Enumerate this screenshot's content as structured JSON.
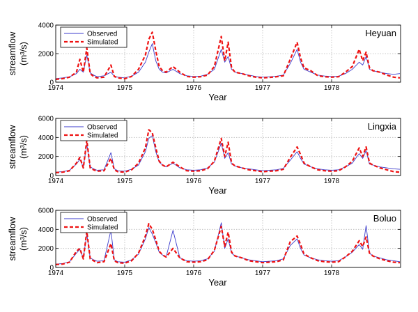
{
  "chart_data": [
    {
      "type": "line",
      "station": "Heyuan",
      "xlabel": "Year",
      "ylabel": "streamflow",
      "ylabel_unit": "(m³/s)",
      "xlim": [
        1974,
        1979
      ],
      "ylim": [
        0,
        4000
      ],
      "xticks": [
        "1974",
        "1975",
        "1976",
        "1977",
        "1978"
      ],
      "yticks": [
        "0",
        "2000",
        "4000"
      ],
      "grid": true,
      "legend": "top-left",
      "series": [
        {
          "name": "Observed",
          "color": "#3b3bcc",
          "style": "solid",
          "x": [
            1974.0,
            1974.1,
            1974.2,
            1974.3,
            1974.35,
            1974.4,
            1974.45,
            1974.5,
            1974.55,
            1974.6,
            1974.7,
            1974.8,
            1974.85,
            1974.9,
            1975.0,
            1975.1,
            1975.2,
            1975.3,
            1975.35,
            1975.4,
            1975.45,
            1975.5,
            1975.55,
            1975.6,
            1975.7,
            1975.8,
            1975.9,
            1976.0,
            1976.1,
            1976.2,
            1976.3,
            1976.4,
            1976.45,
            1976.5,
            1976.55,
            1976.6,
            1976.7,
            1976.8,
            1976.9,
            1977.0,
            1977.1,
            1977.2,
            1977.3,
            1977.4,
            1977.5,
            1977.55,
            1977.6,
            1977.7,
            1977.8,
            1977.9,
            1978.0,
            1978.1,
            1978.2,
            1978.3,
            1978.4,
            1978.45,
            1978.5,
            1978.55,
            1978.6,
            1978.7,
            1978.8,
            1978.9,
            1978.99
          ],
          "y": [
            250,
            300,
            380,
            600,
            900,
            700,
            1900,
            650,
            500,
            380,
            450,
            700,
            420,
            350,
            300,
            420,
            700,
            1400,
            2100,
            2700,
            1500,
            900,
            700,
            650,
            900,
            600,
            450,
            400,
            420,
            550,
            900,
            2300,
            1400,
            1800,
            900,
            700,
            600,
            500,
            400,
            350,
            380,
            420,
            500,
            1300,
            2300,
            1400,
            900,
            700,
            500,
            430,
            400,
            420,
            600,
            900,
            1400,
            1200,
            1800,
            900,
            800,
            700,
            600,
            550,
            600
          ]
        },
        {
          "name": "Simulated",
          "color": "#ee1111",
          "style": "dashed",
          "x": [
            1974.0,
            1974.1,
            1974.2,
            1974.3,
            1974.35,
            1974.4,
            1974.45,
            1974.5,
            1974.55,
            1974.6,
            1974.7,
            1974.8,
            1974.85,
            1974.9,
            1975.0,
            1975.1,
            1975.2,
            1975.3,
            1975.35,
            1975.4,
            1975.45,
            1975.5,
            1975.55,
            1975.6,
            1975.7,
            1975.8,
            1975.9,
            1976.0,
            1976.1,
            1976.2,
            1976.3,
            1976.4,
            1976.45,
            1976.5,
            1976.55,
            1976.6,
            1976.7,
            1976.8,
            1976.9,
            1977.0,
            1977.1,
            1977.2,
            1977.3,
            1977.4,
            1977.5,
            1977.55,
            1977.6,
            1977.7,
            1977.8,
            1977.9,
            1978.0,
            1978.1,
            1978.2,
            1978.3,
            1978.4,
            1978.45,
            1978.5,
            1978.55,
            1978.6,
            1978.7,
            1978.8,
            1978.9,
            1978.99
          ],
          "y": [
            200,
            250,
            350,
            700,
            1600,
            700,
            2400,
            600,
            400,
            300,
            350,
            1200,
            400,
            300,
            250,
            400,
            900,
            1900,
            3000,
            3500,
            2200,
            1100,
            800,
            700,
            1100,
            700,
            400,
            350,
            380,
            500,
            1100,
            3200,
            1500,
            2800,
            1000,
            700,
            600,
            450,
            350,
            300,
            330,
            380,
            450,
            1600,
            2800,
            1700,
            1000,
            800,
            450,
            380,
            350,
            380,
            700,
            1100,
            2300,
            1500,
            2100,
            1000,
            800,
            700,
            500,
            350,
            300
          ]
        }
      ]
    },
    {
      "type": "line",
      "station": "Lingxia",
      "xlabel": "Year",
      "ylabel": "streamflow",
      "ylabel_unit": "(m³/s)",
      "xlim": [
        1974,
        1979
      ],
      "ylim": [
        0,
        6000
      ],
      "xticks": [
        "1974",
        "1975",
        "1976",
        "1977",
        "1978"
      ],
      "yticks": [
        "0",
        "2000",
        "4000",
        "6000"
      ],
      "grid": true,
      "legend": "top-left",
      "series": [
        {
          "name": "Observed",
          "color": "#3b3bcc",
          "style": "solid",
          "x": [
            1974.0,
            1974.1,
            1974.2,
            1974.3,
            1974.35,
            1974.4,
            1974.45,
            1974.5,
            1974.55,
            1974.6,
            1974.7,
            1974.8,
            1974.85,
            1974.9,
            1975.0,
            1975.1,
            1975.2,
            1975.3,
            1975.35,
            1975.4,
            1975.45,
            1975.5,
            1975.55,
            1975.6,
            1975.7,
            1975.8,
            1975.9,
            1976.0,
            1976.1,
            1976.2,
            1976.3,
            1976.4,
            1976.45,
            1976.5,
            1976.55,
            1976.6,
            1976.7,
            1976.8,
            1976.9,
            1977.0,
            1977.1,
            1977.2,
            1977.3,
            1977.4,
            1977.5,
            1977.55,
            1977.6,
            1977.7,
            1977.8,
            1977.9,
            1978.0,
            1978.1,
            1978.2,
            1978.3,
            1978.4,
            1978.45,
            1978.5,
            1978.55,
            1978.6,
            1978.7,
            1978.8,
            1978.9,
            1978.99
          ],
          "y": [
            350,
            400,
            550,
            1200,
            1700,
            900,
            3300,
            900,
            700,
            550,
            600,
            2400,
            700,
            500,
            450,
            650,
            1100,
            2500,
            3900,
            4200,
            2500,
            1400,
            1100,
            900,
            1300,
            800,
            600,
            550,
            600,
            800,
            1400,
            3400,
            1800,
            2400,
            1200,
            1000,
            800,
            700,
            600,
            500,
            550,
            600,
            750,
            1600,
            2500,
            1800,
            1200,
            900,
            700,
            600,
            550,
            600,
            900,
            1300,
            2300,
            1800,
            2600,
            1200,
            1100,
            900,
            800,
            700,
            650
          ]
        },
        {
          "name": "Simulated",
          "color": "#ee1111",
          "style": "dashed",
          "x": [
            1974.0,
            1974.1,
            1974.2,
            1974.3,
            1974.35,
            1974.4,
            1974.45,
            1974.5,
            1974.55,
            1974.6,
            1974.7,
            1974.8,
            1974.85,
            1974.9,
            1975.0,
            1975.1,
            1975.2,
            1975.3,
            1975.35,
            1975.4,
            1975.45,
            1975.5,
            1975.55,
            1975.6,
            1975.7,
            1975.8,
            1975.9,
            1976.0,
            1976.1,
            1976.2,
            1976.3,
            1976.4,
            1976.45,
            1976.5,
            1976.55,
            1976.6,
            1976.7,
            1976.8,
            1976.9,
            1977.0,
            1977.1,
            1977.2,
            1977.3,
            1977.4,
            1977.5,
            1977.55,
            1977.6,
            1977.7,
            1977.8,
            1977.9,
            1978.0,
            1978.1,
            1978.2,
            1978.3,
            1978.4,
            1978.45,
            1978.5,
            1978.55,
            1978.6,
            1978.7,
            1978.8,
            1978.9,
            1978.99
          ],
          "y": [
            300,
            350,
            500,
            1300,
            1900,
            800,
            3700,
            800,
            600,
            450,
            500,
            1800,
            600,
            400,
            350,
            600,
            1300,
            2900,
            4800,
            4500,
            2900,
            1500,
            1100,
            900,
            1400,
            900,
            500,
            450,
            500,
            700,
            1500,
            3900,
            2000,
            3500,
            1300,
            1000,
            800,
            600,
            500,
            400,
            450,
            500,
            650,
            1900,
            3000,
            2200,
            1300,
            900,
            600,
            500,
            450,
            500,
            900,
            1500,
            2900,
            2000,
            3000,
            1300,
            1100,
            800,
            600,
            400,
            350
          ]
        }
      ]
    },
    {
      "type": "line",
      "station": "Boluo",
      "xlabel": "Year",
      "ylabel": "streamflow",
      "ylabel_unit": "(m³/s)",
      "xlim": [
        1974,
        1979
      ],
      "ylim": [
        0,
        6000
      ],
      "xticks": [
        "1974",
        "1975",
        "1976",
        "1977",
        "1978"
      ],
      "yticks": [
        "0",
        "2000",
        "4000",
        "6000"
      ],
      "grid": true,
      "legend": "top-left",
      "series": [
        {
          "name": "Observed",
          "color": "#3b3bcc",
          "style": "solid",
          "x": [
            1974.0,
            1974.1,
            1974.2,
            1974.3,
            1974.35,
            1974.4,
            1974.45,
            1974.5,
            1974.55,
            1974.6,
            1974.7,
            1974.8,
            1974.85,
            1974.9,
            1975.0,
            1975.1,
            1975.2,
            1975.3,
            1975.35,
            1975.4,
            1975.45,
            1975.5,
            1975.55,
            1975.6,
            1975.7,
            1975.8,
            1975.9,
            1976.0,
            1976.1,
            1976.2,
            1976.3,
            1976.4,
            1976.45,
            1976.5,
            1976.55,
            1976.6,
            1976.7,
            1976.8,
            1976.9,
            1977.0,
            1977.1,
            1977.2,
            1977.3,
            1977.4,
            1977.5,
            1977.55,
            1977.6,
            1977.7,
            1977.8,
            1977.9,
            1978.0,
            1978.1,
            1978.2,
            1978.3,
            1978.4,
            1978.45,
            1978.5,
            1978.55,
            1978.6,
            1978.7,
            1978.8,
            1978.9,
            1978.99
          ],
          "y": [
            350,
            400,
            600,
            1500,
            1900,
            1000,
            3500,
            1000,
            800,
            650,
            700,
            3900,
            800,
            600,
            550,
            800,
            1400,
            3000,
            4200,
            3500,
            2600,
            1600,
            1300,
            1100,
            3900,
            1000,
            700,
            650,
            700,
            900,
            1700,
            4700,
            2000,
            3000,
            1500,
            1200,
            1000,
            800,
            700,
            600,
            650,
            700,
            900,
            2300,
            3000,
            2000,
            1300,
            1000,
            800,
            700,
            650,
            700,
            1100,
            1600,
            2400,
            1900,
            4400,
            1500,
            1200,
            1000,
            800,
            700,
            600
          ]
        },
        {
          "name": "Simulated",
          "color": "#ee1111",
          "style": "dashed",
          "x": [
            1974.0,
            1974.1,
            1974.2,
            1974.3,
            1974.35,
            1974.4,
            1974.45,
            1974.5,
            1974.55,
            1974.6,
            1974.7,
            1974.8,
            1974.85,
            1974.9,
            1975.0,
            1975.1,
            1975.2,
            1975.3,
            1975.35,
            1975.4,
            1975.45,
            1975.5,
            1975.55,
            1975.6,
            1975.7,
            1975.8,
            1975.9,
            1976.0,
            1976.1,
            1976.2,
            1976.3,
            1976.4,
            1976.45,
            1976.5,
            1976.55,
            1976.6,
            1976.7,
            1976.8,
            1976.9,
            1977.0,
            1977.1,
            1977.2,
            1977.3,
            1977.4,
            1977.5,
            1977.55,
            1977.6,
            1977.7,
            1977.8,
            1977.9,
            1978.0,
            1978.1,
            1978.2,
            1978.3,
            1978.4,
            1978.45,
            1978.5,
            1978.55,
            1978.6,
            1978.7,
            1978.8,
            1978.9,
            1978.99
          ],
          "y": [
            300,
            350,
            550,
            1700,
            2000,
            900,
            3800,
            900,
            700,
            500,
            600,
            2500,
            700,
            500,
            450,
            700,
            1500,
            3300,
            4600,
            4000,
            2900,
            1700,
            1300,
            1100,
            2000,
            1000,
            600,
            550,
            600,
            800,
            1800,
            4300,
            2200,
            3700,
            1600,
            1200,
            1000,
            700,
            600,
            500,
            550,
            600,
            800,
            2700,
            3300,
            2400,
            1400,
            1000,
            700,
            600,
            550,
            600,
            1100,
            1700,
            2800,
            2200,
            3200,
            1500,
            1200,
            900,
            700,
            550,
            500
          ]
        }
      ]
    }
  ]
}
